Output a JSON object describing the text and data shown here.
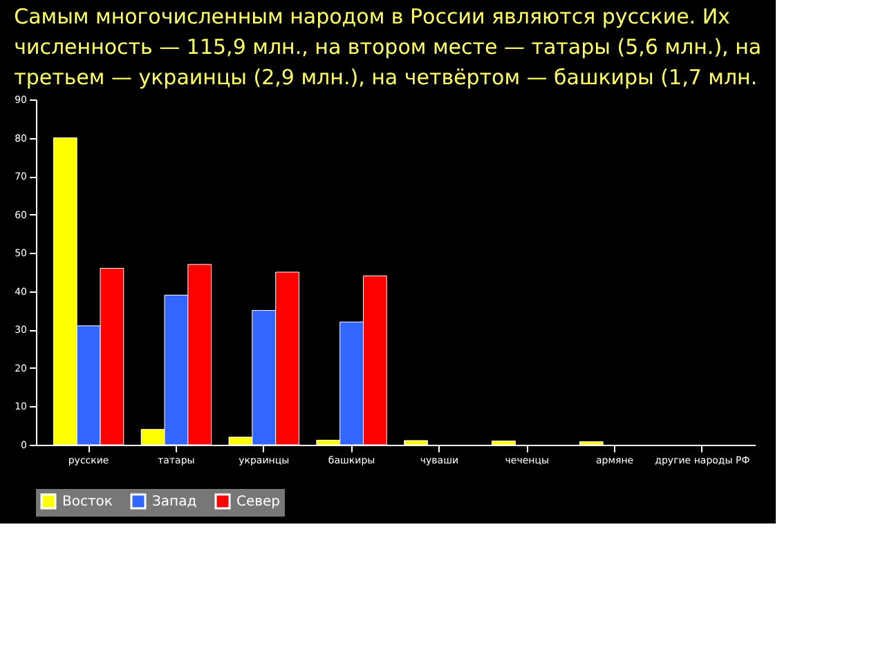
{
  "chart_data": {
    "type": "bar",
    "title": "Самым многочисленным народом в России являются русские. Их численность — 115,9 млн., на втором месте — татары (5,6 млн.), на третьем — украинцы (2,9 млн.), на четвёртом — башкиры (1,7 млн.",
    "categories": [
      "русские",
      "татары",
      "украинцы",
      "башкиры",
      "чуваши",
      "чеченцы",
      "армяне",
      "другие народы РФ"
    ],
    "series": [
      {
        "name": "Восток",
        "color": "#ffff00",
        "values": [
          80,
          4,
          2,
          1.2,
          1.1,
          1,
          0.8,
          null
        ]
      },
      {
        "name": "Запад",
        "color": "#3366ff",
        "values": [
          31,
          39,
          35,
          32,
          null,
          null,
          null,
          null
        ]
      },
      {
        "name": "Север",
        "color": "#ff0000",
        "values": [
          46,
          47,
          45,
          44,
          null,
          null,
          null,
          null
        ]
      }
    ],
    "ylim": [
      0,
      90
    ],
    "yticks": [
      0,
      10,
      20,
      30,
      40,
      50,
      60,
      70,
      80,
      90
    ],
    "grid": false,
    "legend": "bottom"
  }
}
